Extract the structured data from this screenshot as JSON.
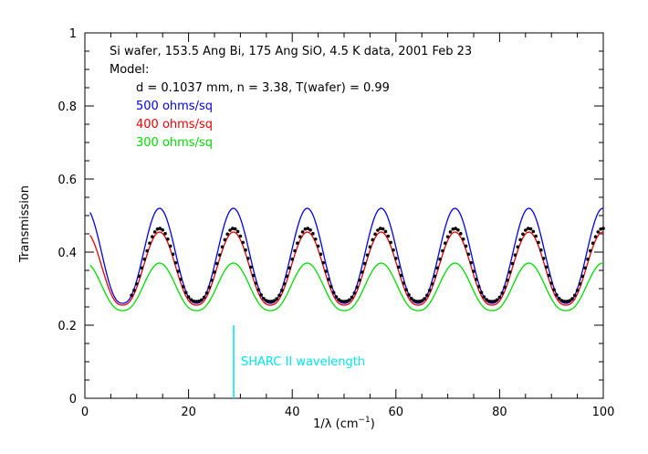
{
  "chart_data": {
    "type": "line",
    "xlabel": "1/λ (cm",
    "xlabel_sup": "−1",
    "xlabel_close": ")",
    "ylabel": "Transmission",
    "xlim": [
      0,
      100
    ],
    "ylim": [
      0,
      1
    ],
    "x_ticks": [
      0,
      20,
      40,
      60,
      80,
      100
    ],
    "y_ticks": [
      0,
      0.2,
      0.4,
      0.6,
      0.8,
      1
    ],
    "x_tick_labels": [
      "0",
      "20",
      "40",
      "60",
      "80",
      "100"
    ],
    "y_tick_labels": [
      "0",
      "0.2",
      "0.4",
      "0.6",
      "0.8",
      "1"
    ],
    "annotations": {
      "line1": "Si wafer, 153.5 Ang Bi, 175 Ang SiO, 4.5 K data, 2001 Feb 23",
      "line2": "Model:",
      "line3": "d = 0.1037 mm, n = 3.38, T(wafer) = 0.99"
    },
    "series": [
      {
        "name": "500 ohms/sq",
        "color": "#0000ee",
        "x_start": 1,
        "x_end": 100,
        "period": 14.25,
        "peak_x": 14.4,
        "min": 0.26,
        "max": 0.52
      },
      {
        "name": "400 ohms/sq",
        "color": "#ee0000",
        "x_start": 1,
        "x_end": 100,
        "period": 14.25,
        "peak_x": 14.4,
        "min": 0.255,
        "max": 0.455
      },
      {
        "name": "300 ohms/sq",
        "color": "#00dd00",
        "x_start": 1,
        "x_end": 100,
        "period": 14.25,
        "peak_x": 14.4,
        "min": 0.24,
        "max": 0.37
      }
    ],
    "measured": {
      "x_start": 9,
      "x_end": 100,
      "step": 0.5,
      "period": 14.25,
      "peak_x": 14.4,
      "min": 0.265,
      "max": 0.465,
      "color": "#000000"
    },
    "marker": {
      "label": "SHARC II wavelength",
      "x": 28.7,
      "y_top": 0.2,
      "color": "#00e5ee"
    }
  }
}
